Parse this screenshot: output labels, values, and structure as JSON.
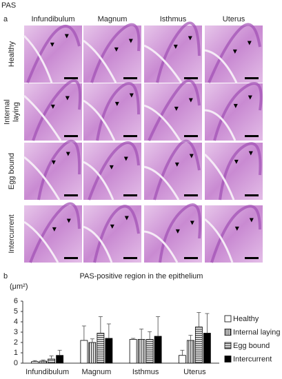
{
  "figure": {
    "label": "PAS",
    "panel_a": "a",
    "panel_b": "b",
    "columns": [
      "Infundibulum",
      "Magnum",
      "Isthmus",
      "Uterus"
    ],
    "rows": [
      [
        "Healthy"
      ],
      [
        "Internal",
        "laying"
      ],
      [
        "Egg bound"
      ],
      [
        "Intercurrent"
      ]
    ]
  },
  "chart_data": {
    "type": "bar",
    "title": "PAS-positive region in the epithelium",
    "y_label": "(μm²)",
    "categories": [
      "Infundibulum",
      "Magnum",
      "Isthmus",
      "Uterus"
    ],
    "series": [
      {
        "name": "Healthy",
        "color": "#ffffff",
        "pattern": "none",
        "values": [
          0.15,
          2.2,
          2.3,
          0.75
        ],
        "errors": [
          0.1,
          1.4,
          0.1,
          0.5
        ]
      },
      {
        "name": "Internal laying",
        "color": "#ffffff",
        "pattern": "vertical",
        "values": [
          0.2,
          2.0,
          2.3,
          2.2
        ],
        "errors": [
          0.1,
          0.35,
          1.0,
          0.5
        ]
      },
      {
        "name": "Egg bound",
        "color": "#ffffff",
        "pattern": "horizontal",
        "values": [
          0.4,
          2.9,
          2.3,
          3.5
        ],
        "errors": [
          0.3,
          1.6,
          0.75,
          1.4
        ]
      },
      {
        "name": "Intercurrent",
        "color": "#000000",
        "pattern": "none",
        "values": [
          0.75,
          2.4,
          2.6,
          2.9
        ],
        "errors": [
          0.5,
          1.4,
          1.9,
          1.9
        ]
      }
    ],
    "ylim": [
      0,
      6
    ],
    "yticks": [
      0,
      1,
      2,
      3,
      4,
      5,
      6
    ],
    "grid": false
  }
}
